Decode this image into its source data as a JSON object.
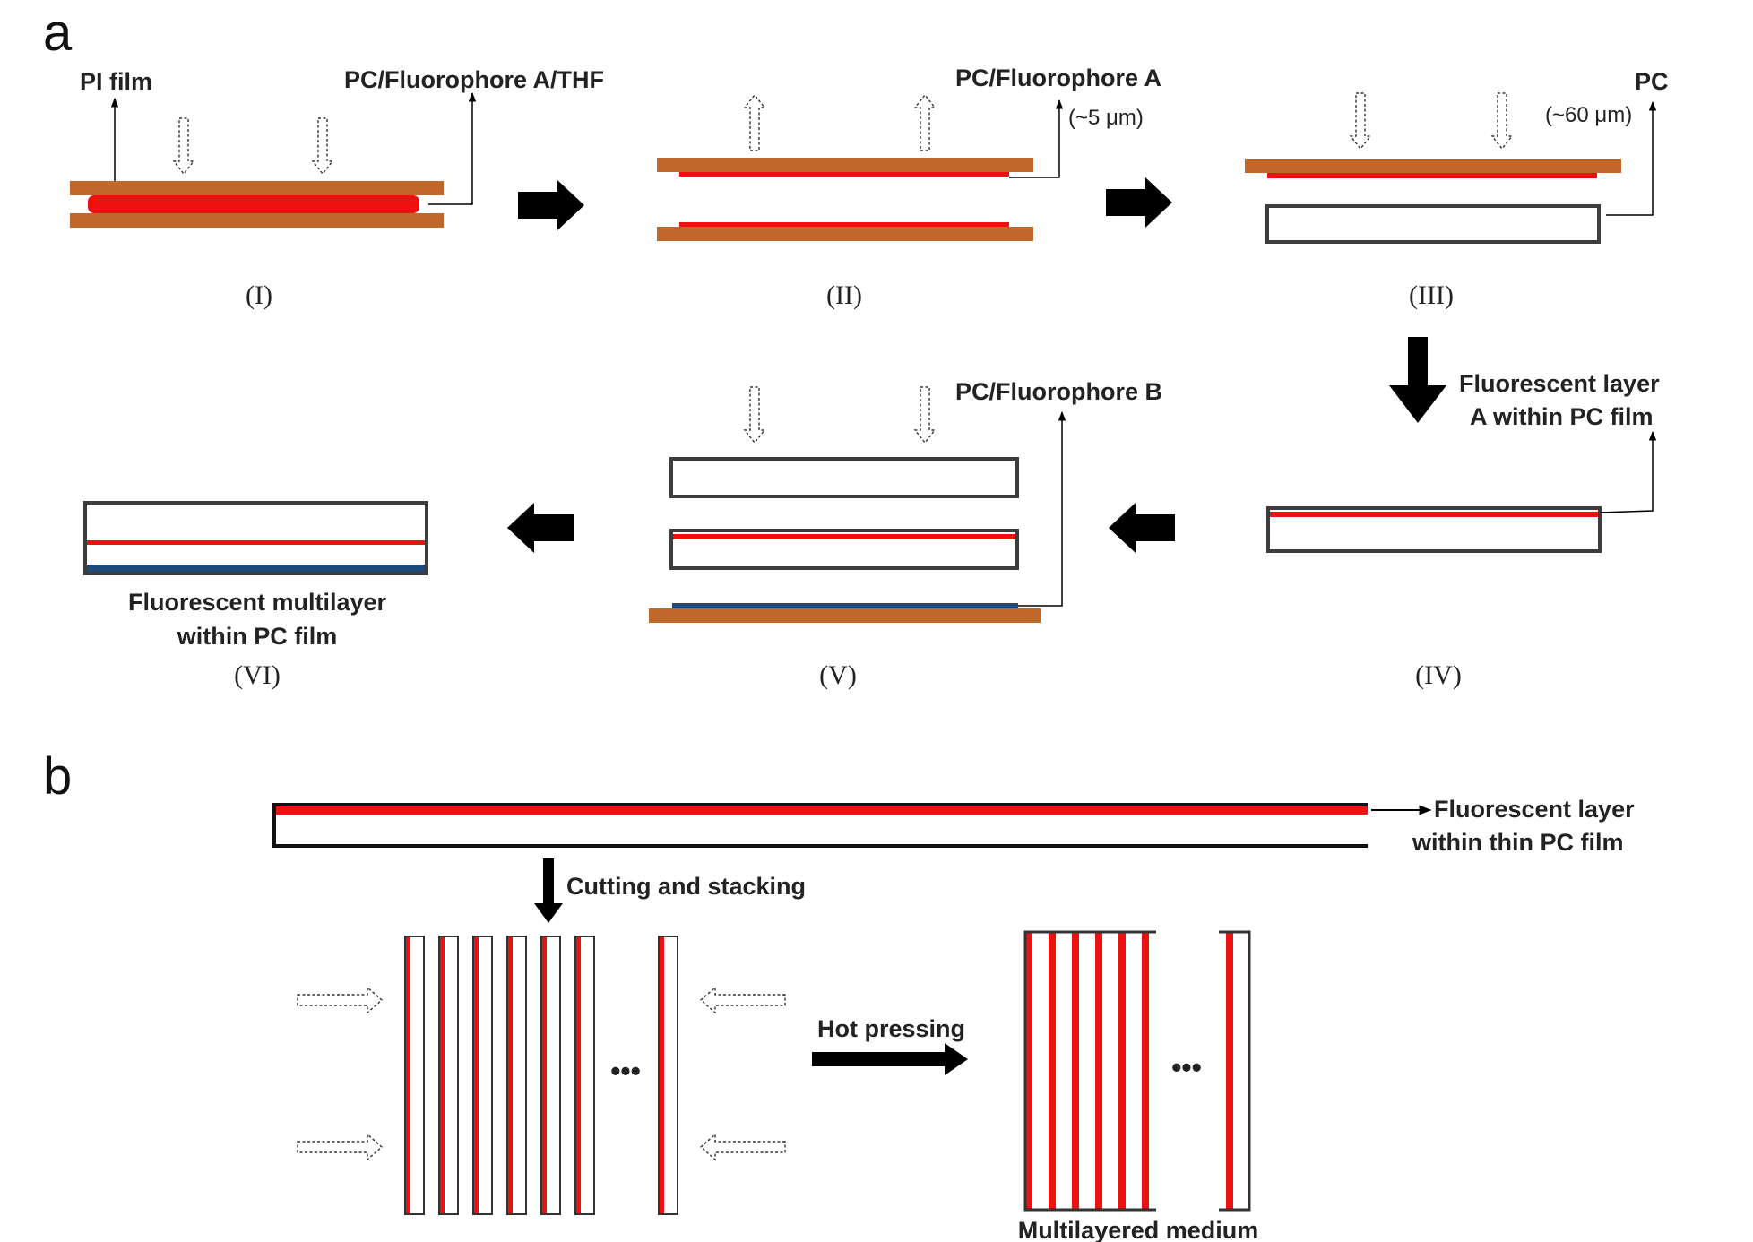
{
  "colors": {
    "pi_film": "#c0672a",
    "fluorophore_a": "#ee1111",
    "fluorophore_b": "#1d4a7c",
    "pc_outline": "#3d3d3d",
    "arrow": "#000000"
  },
  "panel_a": {
    "letter": "a",
    "labels": {
      "pi_film": "PI film",
      "pc_fa_thf": "PC/Fluorophore A/THF",
      "pc_fa": "PC/Fluorophore A",
      "thick_5": "(~5 μm)",
      "pc": "PC",
      "thick_60": "(~60 μm)",
      "fluor_layer_a_1": "Fluorescent layer",
      "fluor_layer_a_2": "A within PC film",
      "pc_fb": "PC/Fluorophore B",
      "multilayer_1": "Fluorescent multilayer",
      "multilayer_2": "within PC film"
    },
    "steps": [
      "(I)",
      "(II)",
      "(III)",
      "(IV)",
      "(V)",
      "(VI)"
    ]
  },
  "panel_b": {
    "letter": "b",
    "labels": {
      "thin_film_1": "Fluorescent layer",
      "thin_film_2": "within thin PC film",
      "cutting": "Cutting and stacking",
      "hot_pressing": "Hot pressing",
      "medium": "Multilayered medium",
      "ellipsis": "•••"
    }
  }
}
